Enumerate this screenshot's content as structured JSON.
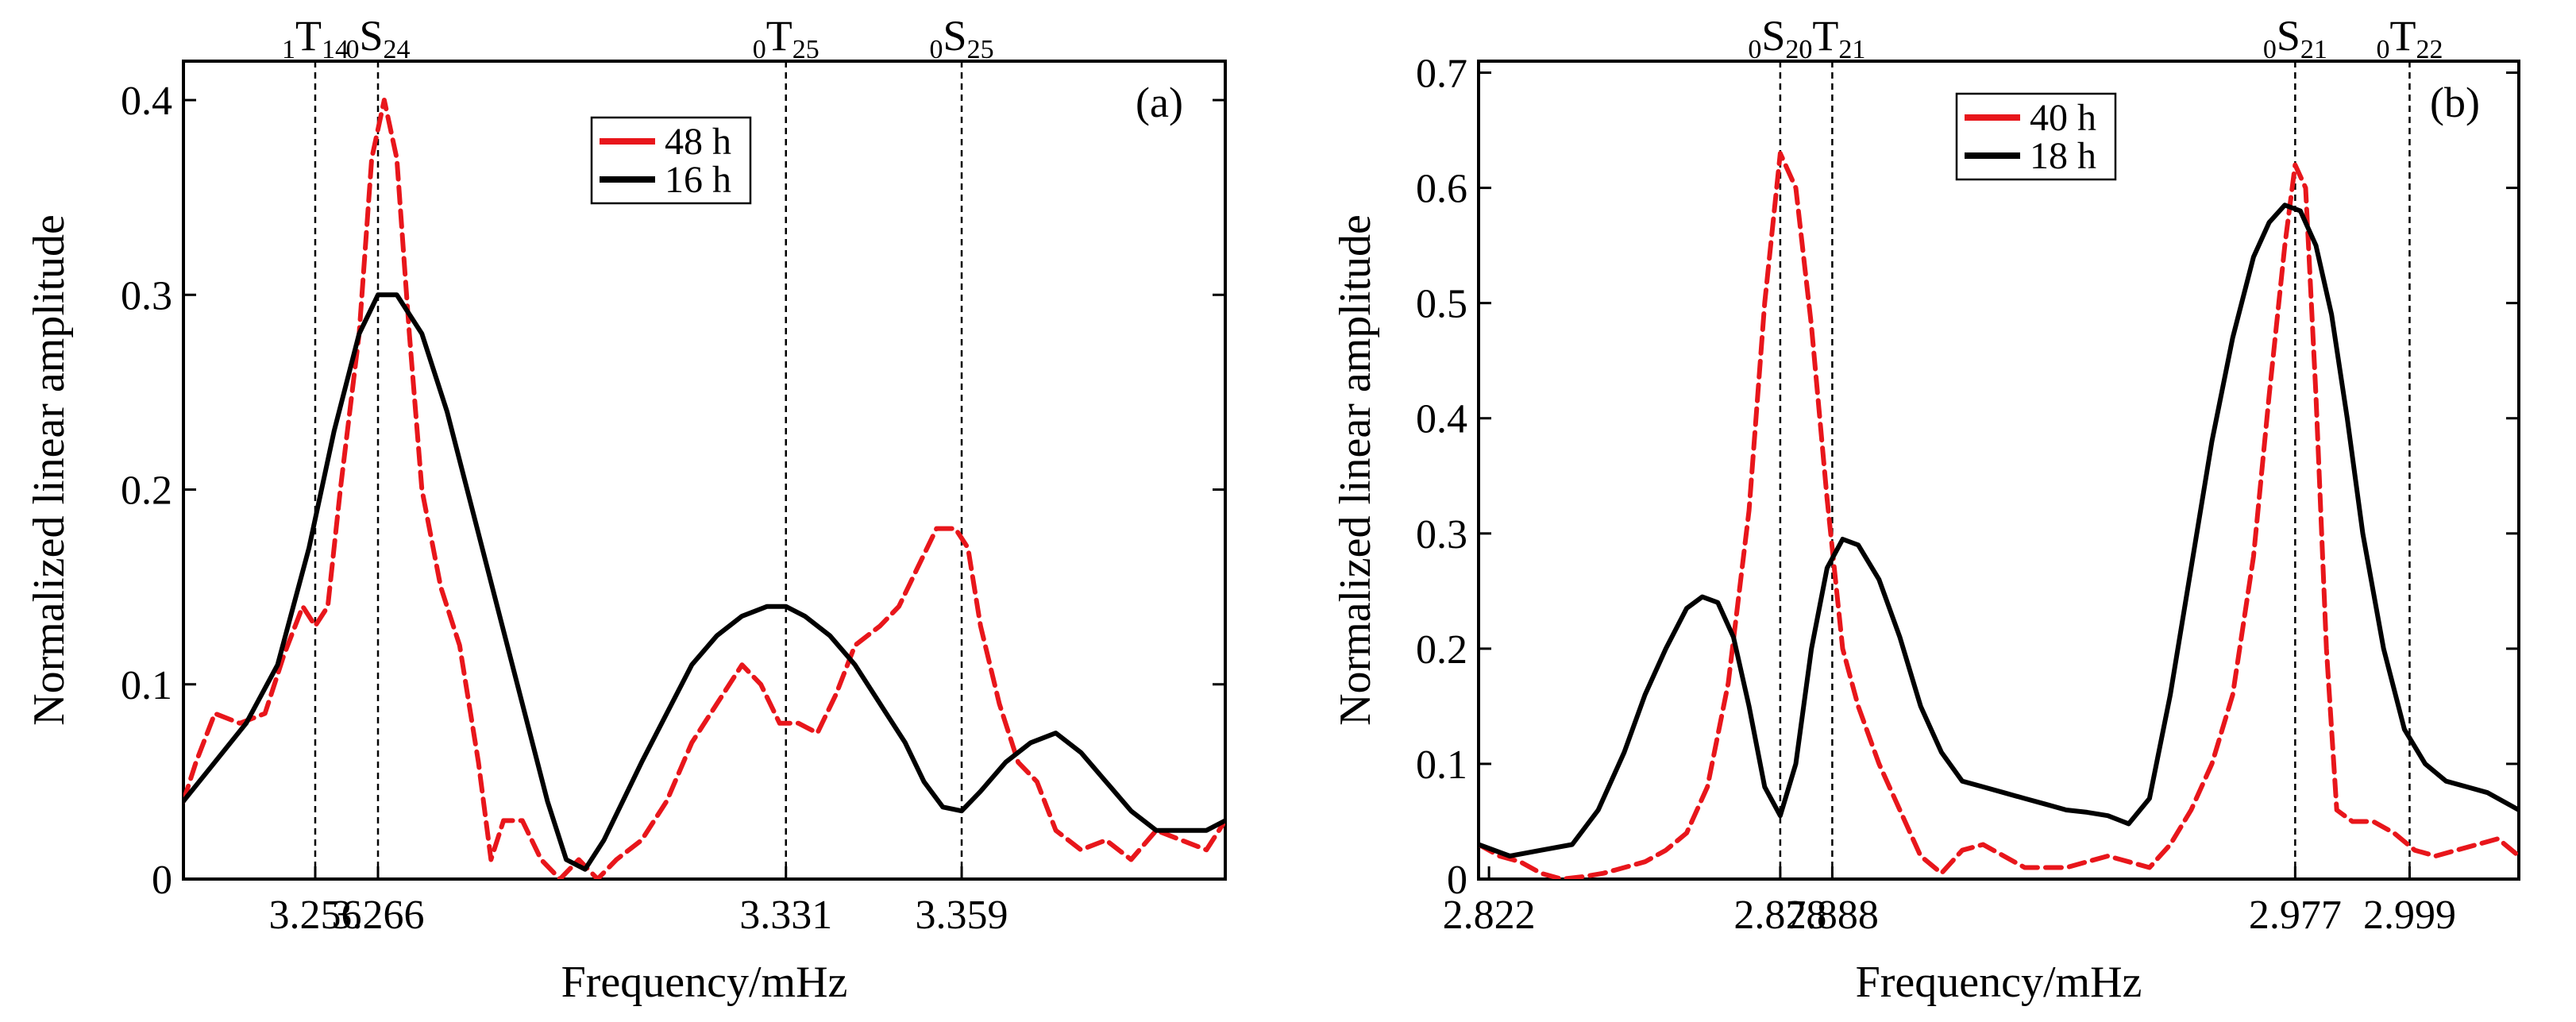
{
  "figure": {
    "panels": [
      "(a)",
      "(b)"
    ]
  },
  "chart_data": [
    {
      "type": "line",
      "panel_label": "(a)",
      "xlabel": "Frequency/mHz",
      "ylabel": "Normalized linear amplitude",
      "xlim": [
        3.235,
        3.401
      ],
      "ylim": [
        0,
        0.42
      ],
      "y_ticks": [
        0,
        0.1,
        0.2,
        0.3,
        0.4
      ],
      "y_tick_labels": [
        "0",
        "0.1",
        "0.2",
        "0.3",
        "0.4"
      ],
      "x_ticks": [
        3.256,
        3.266,
        3.331,
        3.359
      ],
      "x_tick_labels": [
        "3.256",
        "3.266",
        "3.331",
        "3.359"
      ],
      "legend_position": "top-center",
      "modes": [
        {
          "pre": "1",
          "base": "T",
          "sub": "14",
          "x": 3.256
        },
        {
          "pre": "0",
          "base": "S",
          "sub": "24",
          "x": 3.266
        },
        {
          "pre": "0",
          "base": "T",
          "sub": "25",
          "x": 3.331
        },
        {
          "pre": "0",
          "base": "S",
          "sub": "25",
          "x": 3.359
        }
      ],
      "series": [
        {
          "name": "48 h",
          "color": "#e8161b",
          "dash": "dashed",
          "x": [
            3.235,
            3.237,
            3.24,
            3.244,
            3.248,
            3.251,
            3.254,
            3.256,
            3.258,
            3.26,
            3.263,
            3.265,
            3.267,
            3.269,
            3.271,
            3.273,
            3.276,
            3.279,
            3.282,
            3.284,
            3.286,
            3.289,
            3.292,
            3.295,
            3.298,
            3.301,
            3.304,
            3.308,
            3.312,
            3.316,
            3.32,
            3.324,
            3.327,
            3.33,
            3.333,
            3.336,
            3.339,
            3.342,
            3.346,
            3.349,
            3.352,
            3.355,
            3.358,
            3.36,
            3.362,
            3.365,
            3.368,
            3.371,
            3.374,
            3.378,
            3.382,
            3.386,
            3.39,
            3.394,
            3.398,
            3.401
          ],
          "y": [
            0.04,
            0.06,
            0.085,
            0.08,
            0.085,
            0.115,
            0.14,
            0.13,
            0.14,
            0.2,
            0.28,
            0.37,
            0.4,
            0.37,
            0.28,
            0.2,
            0.15,
            0.12,
            0.06,
            0.01,
            0.03,
            0.03,
            0.01,
            0.0,
            0.01,
            0.0,
            0.01,
            0.02,
            0.04,
            0.07,
            0.09,
            0.11,
            0.1,
            0.08,
            0.08,
            0.075,
            0.095,
            0.12,
            0.13,
            0.14,
            0.16,
            0.18,
            0.18,
            0.17,
            0.13,
            0.09,
            0.06,
            0.05,
            0.025,
            0.015,
            0.02,
            0.01,
            0.025,
            0.02,
            0.015,
            0.03
          ]
        },
        {
          "name": "16 h",
          "color": "#000000",
          "dash": "solid",
          "x": [
            3.235,
            3.24,
            3.245,
            3.25,
            3.255,
            3.259,
            3.263,
            3.266,
            3.269,
            3.273,
            3.277,
            3.281,
            3.285,
            3.289,
            3.293,
            3.296,
            3.299,
            3.302,
            3.305,
            3.308,
            3.312,
            3.316,
            3.32,
            3.324,
            3.328,
            3.331,
            3.334,
            3.338,
            3.342,
            3.346,
            3.35,
            3.353,
            3.356,
            3.359,
            3.362,
            3.366,
            3.37,
            3.374,
            3.378,
            3.382,
            3.386,
            3.39,
            3.394,
            3.398,
            3.401
          ],
          "y": [
            0.04,
            0.06,
            0.08,
            0.11,
            0.17,
            0.23,
            0.28,
            0.3,
            0.3,
            0.28,
            0.24,
            0.19,
            0.14,
            0.09,
            0.04,
            0.01,
            0.005,
            0.02,
            0.04,
            0.06,
            0.085,
            0.11,
            0.125,
            0.135,
            0.14,
            0.14,
            0.135,
            0.125,
            0.11,
            0.09,
            0.07,
            0.05,
            0.037,
            0.035,
            0.045,
            0.06,
            0.07,
            0.075,
            0.065,
            0.05,
            0.035,
            0.025,
            0.025,
            0.025,
            0.03
          ]
        }
      ]
    },
    {
      "type": "line",
      "panel_label": "(b)",
      "xlabel": "Frequency/mHz",
      "ylabel": "Normalized linear amplitude",
      "xlim": [
        2.82,
        3.02
      ],
      "ylim": [
        0,
        0.71
      ],
      "y_ticks": [
        0,
        0.1,
        0.2,
        0.3,
        0.4,
        0.5,
        0.6,
        0.7
      ],
      "y_tick_labels": [
        "0",
        "0.1",
        "0.2",
        "0.3",
        "0.4",
        "0.5",
        "0.6",
        "0.7"
      ],
      "x_ticks": [
        2.822,
        2.878,
        2.888,
        2.977,
        2.999
      ],
      "x_tick_labels": [
        "2.822",
        "2.878",
        "2.888",
        "2.977",
        "2.999"
      ],
      "legend_position": "top-center",
      "modes": [
        {
          "pre": "0",
          "base": "S",
          "sub": "20",
          "x": 2.878
        },
        {
          "pre": "0",
          "base": "T",
          "sub": "21",
          "x": 2.888
        },
        {
          "pre": "0",
          "base": "S",
          "sub": "21",
          "x": 2.977
        },
        {
          "pre": "0",
          "base": "T",
          "sub": "22",
          "x": 2.999
        }
      ],
      "series": [
        {
          "name": "40 h",
          "color": "#e8161b",
          "dash": "dashed",
          "x": [
            2.82,
            2.824,
            2.828,
            2.832,
            2.836,
            2.84,
            2.844,
            2.848,
            2.852,
            2.856,
            2.86,
            2.864,
            2.868,
            2.872,
            2.875,
            2.878,
            2.881,
            2.884,
            2.887,
            2.89,
            2.893,
            2.897,
            2.901,
            2.905,
            2.909,
            2.913,
            2.917,
            2.921,
            2.925,
            2.929,
            2.933,
            2.937,
            2.941,
            2.945,
            2.949,
            2.953,
            2.957,
            2.961,
            2.965,
            2.969,
            2.972,
            2.975,
            2.977,
            2.979,
            2.981,
            2.983,
            2.985,
            2.988,
            2.992,
            2.996,
            3.0,
            3.004,
            3.008,
            3.012,
            3.016,
            3.02
          ],
          "y": [
            0.03,
            0.02,
            0.015,
            0.005,
            0.0,
            0.002,
            0.005,
            0.01,
            0.015,
            0.025,
            0.04,
            0.08,
            0.17,
            0.32,
            0.5,
            0.63,
            0.6,
            0.48,
            0.33,
            0.2,
            0.15,
            0.1,
            0.06,
            0.02,
            0.005,
            0.025,
            0.03,
            0.02,
            0.01,
            0.01,
            0.01,
            0.015,
            0.02,
            0.015,
            0.01,
            0.03,
            0.06,
            0.1,
            0.16,
            0.28,
            0.42,
            0.55,
            0.62,
            0.6,
            0.42,
            0.2,
            0.06,
            0.05,
            0.05,
            0.04,
            0.025,
            0.02,
            0.025,
            0.03,
            0.035,
            0.02
          ]
        },
        {
          "name": "18 h",
          "color": "#000000",
          "dash": "solid",
          "x": [
            2.82,
            2.826,
            2.832,
            2.838,
            2.843,
            2.848,
            2.852,
            2.856,
            2.86,
            2.863,
            2.866,
            2.869,
            2.872,
            2.875,
            2.878,
            2.881,
            2.884,
            2.887,
            2.89,
            2.893,
            2.897,
            2.901,
            2.905,
            2.909,
            2.913,
            2.917,
            2.921,
            2.925,
            2.929,
            2.933,
            2.937,
            2.941,
            2.945,
            2.949,
            2.953,
            2.957,
            2.961,
            2.965,
            2.969,
            2.972,
            2.975,
            2.978,
            2.981,
            2.984,
            2.987,
            2.99,
            2.994,
            2.998,
            3.002,
            3.006,
            3.01,
            3.014,
            3.018,
            3.02
          ],
          "y": [
            0.03,
            0.02,
            0.025,
            0.03,
            0.06,
            0.11,
            0.16,
            0.2,
            0.235,
            0.245,
            0.24,
            0.21,
            0.15,
            0.08,
            0.055,
            0.1,
            0.2,
            0.27,
            0.295,
            0.29,
            0.26,
            0.21,
            0.15,
            0.11,
            0.085,
            0.08,
            0.075,
            0.07,
            0.065,
            0.06,
            0.058,
            0.055,
            0.048,
            0.07,
            0.16,
            0.27,
            0.38,
            0.47,
            0.54,
            0.57,
            0.585,
            0.58,
            0.55,
            0.49,
            0.4,
            0.3,
            0.2,
            0.13,
            0.1,
            0.085,
            0.08,
            0.075,
            0.065,
            0.06
          ]
        }
      ]
    }
  ]
}
